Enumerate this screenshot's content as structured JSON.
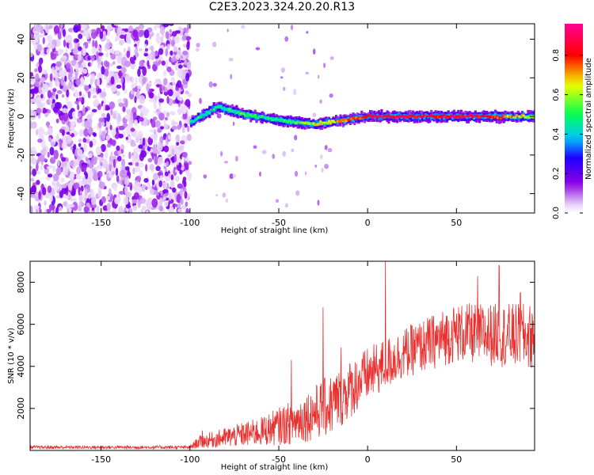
{
  "title": "C2E3.2023.324.20.20.R13",
  "chart_data": [
    {
      "type": "heatmap",
      "xlabel": "Height of straight line (km)",
      "ylabel": "Frequency (Hz)",
      "xlim": [
        -190,
        94
      ],
      "ylim": [
        -50,
        48
      ],
      "x_ticks": [
        -150,
        -100,
        -50,
        0,
        50
      ],
      "y_ticks": [
        -40,
        -20,
        0,
        20,
        40
      ],
      "colorbar": {
        "label": "Normalized spectral amplitude",
        "range": [
          0,
          0.96
        ],
        "ticks": [
          0.0,
          0.2,
          0.4,
          0.6,
          0.8
        ],
        "colormap": "white-purple-blue-cyan-green-yellow-red-magenta"
      },
      "description_points": [
        {
          "x": -100,
          "y": -3,
          "amp": 0.45
        },
        {
          "x": -85,
          "y": 5,
          "amp": 0.45
        },
        {
          "x": -70,
          "y": 1,
          "amp": 0.5
        },
        {
          "x": -50,
          "y": -2,
          "amp": 0.45
        },
        {
          "x": -30,
          "y": -4,
          "amp": 0.6
        },
        {
          "x": -15,
          "y": -2,
          "amp": 0.7
        },
        {
          "x": 0,
          "y": 0,
          "amp": 0.85
        },
        {
          "x": 30,
          "y": 0,
          "amp": 0.85
        },
        {
          "x": 60,
          "y": 0,
          "amp": 0.85
        },
        {
          "x": 94,
          "y": 0,
          "amp": 0.6
        }
      ]
    },
    {
      "type": "line",
      "xlabel": "Height of straight line (km)",
      "ylabel": "SNR (10 * v/v)",
      "xlim": [
        -190,
        94
      ],
      "ylim": [
        0,
        9000
      ],
      "x_ticks": [
        -150,
        -100,
        -50,
        0,
        50
      ],
      "y_ticks": [
        2000,
        4000,
        6000,
        8000
      ],
      "series": [
        {
          "color": "#e8312f",
          "envelope": [
            {
              "x": -190,
              "mean": 150,
              "spread": 80
            },
            {
              "x": -100,
              "mean": 150,
              "spread": 80
            },
            {
              "x": -95,
              "mean": 400,
              "spread": 300
            },
            {
              "x": -60,
              "mean": 900,
              "spread": 700
            },
            {
              "x": -40,
              "mean": 1400,
              "spread": 1100
            },
            {
              "x": -20,
              "mean": 2200,
              "spread": 1500
            },
            {
              "x": 0,
              "mean": 3600,
              "spread": 1300
            },
            {
              "x": 20,
              "mean": 4600,
              "spread": 1200
            },
            {
              "x": 50,
              "mean": 5600,
              "spread": 1400
            },
            {
              "x": 94,
              "mean": 5400,
              "spread": 1600
            }
          ],
          "spikes": [
            {
              "x": -93,
              "y": 950
            },
            {
              "x": -43,
              "y": 4300
            },
            {
              "x": -25,
              "y": 6800
            },
            {
              "x": -15,
              "y": 4900
            },
            {
              "x": 10,
              "y": 9000
            },
            {
              "x": 62,
              "y": 8300
            },
            {
              "x": 74,
              "y": 8800
            },
            {
              "x": 86,
              "y": 7500
            }
          ]
        }
      ]
    }
  ]
}
